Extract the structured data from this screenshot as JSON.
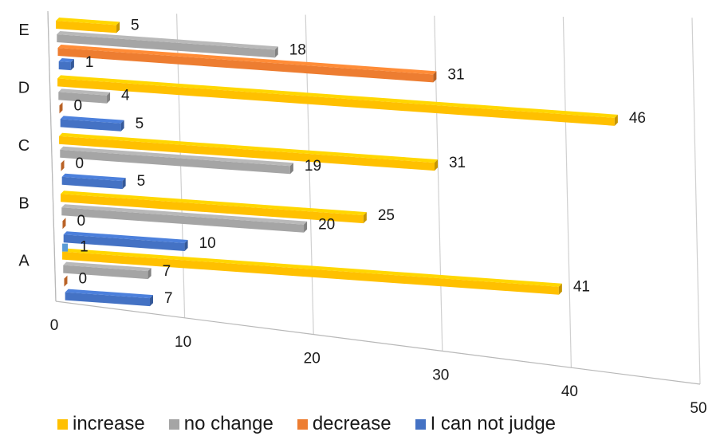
{
  "chart_data": {
    "type": "bar",
    "orientation": "horizontal",
    "three_d": true,
    "categories": [
      "A",
      "B",
      "C",
      "D",
      "E"
    ],
    "xlim": [
      0,
      50
    ],
    "x_ticks": [
      "0",
      "10",
      "20",
      "30",
      "40",
      "50"
    ],
    "grid": true,
    "legend_position": "bottom",
    "series": [
      {
        "name": "increase",
        "color": "#ffc000",
        "values": [
          41,
          25,
          31,
          46,
          5
        ]
      },
      {
        "name": "no change",
        "color": "#a5a5a5",
        "values": [
          7,
          20,
          19,
          4,
          18
        ]
      },
      {
        "name": "decrease",
        "color": "#ed7d31",
        "values": [
          0,
          0,
          0,
          0,
          31
        ]
      },
      {
        "name": "I can not judge",
        "color": "#4472c4",
        "values": [
          7,
          10,
          5,
          5,
          1
        ]
      }
    ],
    "extra_annotations": [
      {
        "category": "A",
        "text": "1",
        "color": "#5b9bd5"
      }
    ]
  }
}
